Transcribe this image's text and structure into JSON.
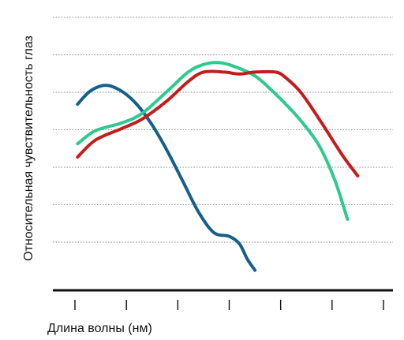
{
  "chart_data": {
    "type": "line",
    "title": "",
    "xlabel": "Длина волны (нм)",
    "ylabel": "Относительная чувствительность глаз",
    "grid": true,
    "legend": "none",
    "tick_count_x": 7,
    "grid_line_count": 7,
    "xlim": [
      0,
      6
    ],
    "ylim": [
      0,
      7
    ],
    "series": [
      {
        "color": "#155f8a",
        "x": [
          0.05,
          0.3,
          0.6,
          0.9,
          1.2,
          1.5,
          1.8,
          2.1,
          2.4,
          2.7,
          3.0,
          3.2,
          3.35,
          3.5
        ],
        "y": [
          4.7,
          5.05,
          5.2,
          5.05,
          4.7,
          4.15,
          3.45,
          2.65,
          1.85,
          1.3,
          1.2,
          1.0,
          0.6,
          0.3
        ]
      },
      {
        "color": "#2ec98e",
        "x": [
          0.05,
          0.4,
          0.9,
          1.3,
          1.8,
          2.2,
          2.5,
          2.8,
          3.1,
          3.5,
          3.8,
          4.1,
          4.4,
          4.75,
          5.05,
          5.3
        ],
        "y": [
          3.65,
          4.0,
          4.2,
          4.45,
          5.05,
          5.55,
          5.75,
          5.8,
          5.7,
          5.45,
          5.1,
          4.7,
          4.25,
          3.6,
          2.7,
          1.65
        ]
      },
      {
        "color": "#c41c1c",
        "x": [
          0.05,
          0.4,
          0.9,
          1.3,
          1.8,
          2.2,
          2.5,
          2.9,
          3.2,
          3.5,
          3.9,
          4.1,
          4.4,
          4.8,
          5.2,
          5.5
        ],
        "y": [
          3.3,
          3.75,
          4.05,
          4.3,
          4.8,
          5.3,
          5.55,
          5.55,
          5.5,
          5.55,
          5.55,
          5.4,
          5.0,
          4.2,
          3.35,
          2.8
        ]
      }
    ]
  }
}
